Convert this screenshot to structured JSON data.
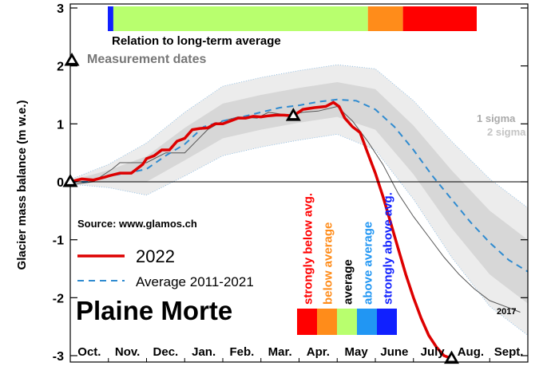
{
  "chart_data": {
    "type": "line",
    "title": "Plaine Morte",
    "ylabel": "Glacier mass balance (m w.e.)",
    "xlabel": "",
    "ylim": [
      -3.1,
      3.1
    ],
    "yticks": [
      3,
      2,
      1,
      0,
      -1,
      -2,
      -3
    ],
    "ytick_labels": [
      "3",
      "2",
      "1",
      "0",
      "-1",
      "-2",
      "-3"
    ],
    "xlim": [
      0,
      12
    ],
    "x_unit": "months since 1 October",
    "month_labels": [
      "Oct.",
      "Nov.",
      "Dec.",
      "Jan.",
      "Feb.",
      "Mar.",
      "Apr.",
      "May",
      "June",
      "July",
      "Aug.",
      "Sept."
    ],
    "zero_line": true,
    "colors": {
      "series_2022": "#dd0000",
      "average": "#2f8bd0",
      "sigma1": "#d7d7d7",
      "sigma2": "#ececec",
      "year_2017": "#555555",
      "strongly_below": "#ff0000",
      "below": "#ff8c1a",
      "average_band": "#b8ff6e",
      "above": "#2196f3",
      "strongly_above": "#1020ff"
    },
    "relation_bar": {
      "label": "Relation to long-term average",
      "segments": [
        {
          "category": "strongly above avg.",
          "x_start": 0.0,
          "x_end": 0.15
        },
        {
          "category": "average",
          "x_start": 0.15,
          "x_end": 7.05
        },
        {
          "category": "below average",
          "x_start": 7.05,
          "x_end": 8.0
        },
        {
          "category": "strongly below avg.",
          "x_start": 8.0,
          "x_end": 10.0
        }
      ]
    },
    "measurement_dates_label": "Measurement dates",
    "measurements": [
      {
        "x": 0.0,
        "y": 0.0
      },
      {
        "x": 5.85,
        "y": 1.14
      },
      {
        "x": 10.0,
        "y": -3.05
      }
    ],
    "source_label": "Source: www.glamos.ch",
    "legend": [
      {
        "name": "2022",
        "style": "solid"
      },
      {
        "name": "Average 2011-2021",
        "style": "dashed"
      }
    ],
    "sigma_labels": [
      "1 sigma",
      "2 sigma"
    ],
    "year_2017_label": "2017",
    "category_legend": [
      {
        "label": "strongly below avg.",
        "color": "#ff0000"
      },
      {
        "label": "below average",
        "color": "#ff8c1a"
      },
      {
        "label": "average",
        "color": "#b8ff6e"
      },
      {
        "label": "above average",
        "color": "#2196f3"
      },
      {
        "label": "strongly above avg.",
        "color": "#1020ff"
      }
    ],
    "series": [
      {
        "name": "2022",
        "x": [
          0,
          0.3,
          0.6,
          0.9,
          1.0,
          1.3,
          1.6,
          1.9,
          2.0,
          2.2,
          2.4,
          2.6,
          2.8,
          3.0,
          3.2,
          3.4,
          3.6,
          3.8,
          4.0,
          4.2,
          4.4,
          4.6,
          4.8,
          5.0,
          5.2,
          5.4,
          5.6,
          5.85,
          6.1,
          6.4,
          6.7,
          6.9,
          7.05,
          7.2,
          7.4,
          7.6,
          7.8,
          8.0,
          8.2,
          8.4,
          8.6,
          8.8,
          9.0,
          9.2,
          9.4,
          9.6,
          9.8,
          10.0
        ],
        "y": [
          0,
          0.05,
          0.03,
          0.08,
          0.1,
          0.15,
          0.15,
          0.3,
          0.4,
          0.45,
          0.55,
          0.55,
          0.7,
          0.75,
          0.9,
          0.92,
          0.93,
          1.0,
          1.0,
          1.05,
          1.1,
          1.1,
          1.13,
          1.12,
          1.14,
          1.15,
          1.15,
          1.14,
          1.25,
          1.28,
          1.3,
          1.37,
          1.3,
          1.1,
          0.95,
          0.85,
          0.5,
          0.15,
          -0.25,
          -0.7,
          -1.15,
          -1.6,
          -2.0,
          -2.35,
          -2.65,
          -2.85,
          -3.0,
          -3.05
        ]
      },
      {
        "name": "Average 2011-2021",
        "x": [
          0,
          0.5,
          1.0,
          1.5,
          2.0,
          2.5,
          3.0,
          3.5,
          4.0,
          4.5,
          5.0,
          5.5,
          6.0,
          6.5,
          7.0,
          7.5,
          8.0,
          8.5,
          9.0,
          9.5,
          10.0,
          10.5,
          11.0,
          11.5,
          12.0
        ],
        "y": [
          0,
          0.0,
          0.1,
          0.15,
          0.22,
          0.45,
          0.65,
          0.95,
          1.05,
          1.12,
          1.2,
          1.28,
          1.32,
          1.38,
          1.42,
          1.4,
          1.25,
          0.95,
          0.55,
          0.1,
          -0.3,
          -0.7,
          -1.05,
          -1.35,
          -1.55
        ]
      },
      {
        "name": "2017",
        "x": [
          0,
          0.6,
          1.1,
          1.3,
          2.0,
          2.5,
          3.0,
          3.6,
          4.0,
          4.4,
          4.9,
          5.2,
          5.7,
          6.1,
          6.5,
          7.0,
          7.4,
          7.8,
          8.2,
          8.6,
          9.0,
          9.4,
          9.8,
          10.2,
          10.6,
          11.0,
          11.4,
          11.8
        ],
        "y": [
          -0.05,
          0.0,
          0.22,
          0.33,
          0.33,
          0.5,
          0.5,
          0.9,
          1.05,
          1.12,
          1.1,
          1.2,
          1.15,
          1.2,
          1.22,
          1.3,
          1.05,
          0.7,
          0.3,
          -0.2,
          -0.6,
          -0.95,
          -1.3,
          -1.6,
          -1.85,
          -2.05,
          -2.15,
          -2.25
        ]
      }
    ],
    "bands": {
      "x": [
        0,
        1,
        2,
        3,
        4,
        5,
        6,
        7,
        8,
        9,
        10,
        11,
        12
      ],
      "avg": [
        0,
        0.1,
        0.22,
        0.65,
        1.05,
        1.2,
        1.32,
        1.42,
        1.25,
        0.55,
        -0.3,
        -1.05,
        -1.55
      ],
      "sigma1": [
        0.02,
        0.1,
        0.22,
        0.28,
        0.3,
        0.3,
        0.3,
        0.3,
        0.35,
        0.42,
        0.5,
        0.55,
        0.55
      ],
      "sigma2": [
        0.04,
        0.2,
        0.45,
        0.55,
        0.6,
        0.6,
        0.6,
        0.6,
        0.7,
        0.85,
        1.0,
        1.1,
        1.1
      ]
    }
  }
}
